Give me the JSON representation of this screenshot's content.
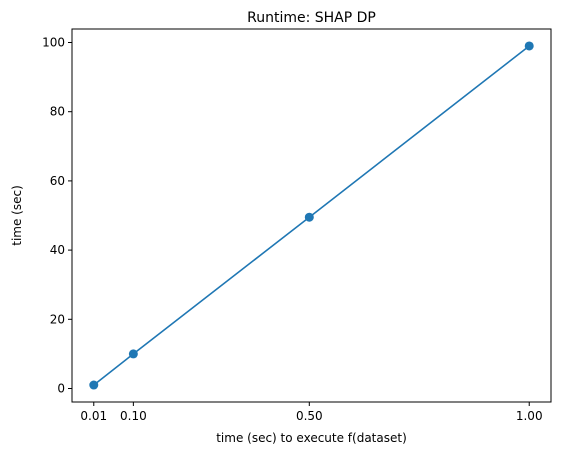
{
  "chart_data": {
    "type": "line",
    "title": "Runtime: SHAP DP",
    "xlabel": "time (sec) to execute f(dataset)",
    "ylabel": "time (sec)",
    "series": [
      {
        "x": [
          0.01,
          0.1,
          0.5,
          1.0
        ],
        "y": [
          1.0,
          10.0,
          49.5,
          99.0
        ],
        "color": "#1f77b4",
        "marker": "circle"
      }
    ],
    "xticks": [
      0.01,
      0.1,
      0.5,
      1.0
    ],
    "xtick_labels": [
      "0.01",
      "0.10",
      "0.50",
      "1.00"
    ],
    "yticks": [
      0,
      20,
      40,
      60,
      80,
      100
    ],
    "ytick_labels": [
      "0",
      "20",
      "40",
      "60",
      "80",
      "100"
    ],
    "xlim": [
      -0.0395,
      1.0495
    ],
    "ylim": [
      -3.9,
      103.9
    ],
    "grid": false,
    "legend": "none"
  }
}
